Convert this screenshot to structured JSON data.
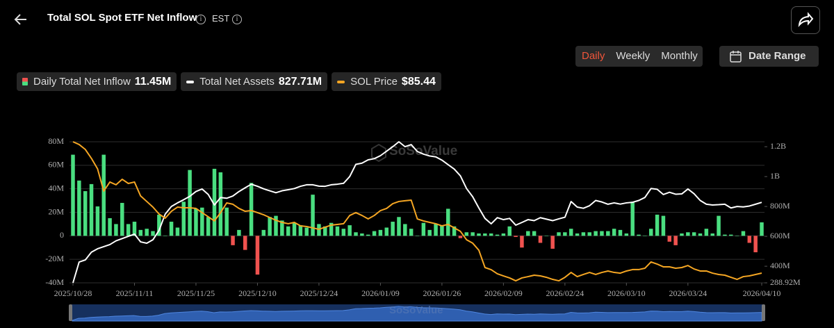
{
  "header": {
    "title": "Total SOL Spot ETF Net Inflow",
    "timezone": "EST"
  },
  "controls": {
    "tabs": [
      "Daily",
      "Weekly",
      "Monthly"
    ],
    "date_range": "Date Range"
  },
  "watermark": "SoSoValue",
  "chart_data": {
    "type": "combo",
    "categories": [
      "2025/10/28",
      null,
      null,
      null,
      null,
      null,
      null,
      null,
      null,
      null,
      "2025/11/11",
      null,
      null,
      null,
      null,
      null,
      null,
      null,
      null,
      null,
      "2025/11/25",
      null,
      null,
      null,
      null,
      null,
      null,
      null,
      null,
      null,
      "2025/12/10",
      null,
      null,
      null,
      null,
      null,
      null,
      null,
      null,
      null,
      "2025/12/24",
      null,
      null,
      null,
      null,
      null,
      null,
      null,
      null,
      null,
      "2026/01/09",
      null,
      null,
      null,
      null,
      null,
      null,
      null,
      null,
      null,
      "2026/01/26",
      null,
      null,
      null,
      null,
      null,
      null,
      null,
      null,
      null,
      "2026/02/09",
      null,
      null,
      null,
      null,
      null,
      null,
      null,
      null,
      null,
      "2026/02/24",
      null,
      null,
      null,
      null,
      null,
      null,
      null,
      null,
      null,
      "2026/03/10",
      null,
      null,
      null,
      null,
      null,
      null,
      null,
      null,
      null,
      "2026/03/24",
      null,
      null,
      null,
      null,
      null,
      null,
      null,
      null,
      null,
      null,
      null,
      "2026/04/10"
    ],
    "series": [
      {
        "name": "Daily Total Net Inflow",
        "current": "11.45M",
        "type": "bar",
        "color": "#4ade80",
        "negative_color": "#f0524f",
        "values": [
          69,
          47,
          38,
          44,
          25,
          69,
          15,
          10,
          28,
          10,
          12,
          5,
          6,
          4,
          18,
          0,
          12,
          7,
          29,
          56,
          23,
          24,
          16,
          57,
          54,
          24,
          -8,
          5,
          -12,
          45,
          -33,
          5,
          16,
          17,
          13,
          8,
          11,
          9,
          7,
          35,
          10,
          8,
          11,
          8,
          6,
          9,
          3,
          2,
          1,
          4,
          5,
          7,
          12,
          16,
          10,
          6,
          0,
          11,
          5,
          10,
          9,
          23,
          8,
          -2,
          3,
          3,
          2,
          2,
          2,
          1,
          2,
          8,
          -1,
          -10,
          4,
          4,
          -6,
          0,
          -11,
          3,
          3,
          6,
          2,
          3,
          3,
          4,
          4,
          4,
          6,
          5,
          2,
          29,
          1,
          0,
          6,
          18,
          17,
          -5,
          -8,
          2,
          3,
          3,
          2,
          6,
          2,
          17,
          1,
          1,
          0,
          4,
          -6,
          -14,
          11.45
        ]
      },
      {
        "name": "Total Net Assets",
        "current": "827.71M",
        "type": "line",
        "color": "#ffffff",
        "axis": "y2",
        "values": [
          289,
          428,
          442,
          494,
          517,
          531,
          545,
          570,
          585,
          600,
          615,
          563,
          554,
          577,
          640,
          749,
          800,
          824,
          845,
          868,
          900,
          917,
          880,
          810,
          860,
          855,
          870,
          900,
          925,
          949,
          935,
          918,
          905,
          892,
          905,
          912,
          920,
          935,
          945,
          945,
          936,
          935,
          945,
          949,
          955,
          1000,
          1082,
          1090,
          1112,
          1120,
          1140,
          1170,
          1200,
          1233,
          1200,
          1214,
          1168,
          1150,
          1138,
          1132,
          1110,
          1080,
          1050,
          1005,
          920,
          865,
          790,
          720,
          684,
          725,
          712,
          720,
          675,
          693,
          712,
          705,
          725,
          715,
          705,
          717,
          728,
          833,
          796,
          788,
          805,
          840,
          830,
          815,
          824,
          816,
          824,
          828,
          840,
          860,
          920,
          915,
          880,
          895,
          882,
          884,
          917,
          885,
          840,
          815,
          810,
          812,
          815,
          790,
          800,
          797,
          803,
          815,
          827.71
        ]
      },
      {
        "name": "SOL Price",
        "current": "$85.44",
        "type": "line",
        "color": "#f5a623",
        "axis": "y3",
        "values": [
          195.4,
          193.1,
          189.0,
          181.5,
          172.7,
          154.1,
          161.7,
          159.4,
          164.0,
          160.5,
          161.7,
          150.0,
          145.4,
          140.7,
          134.9,
          131.4,
          137.2,
          140.7,
          140.1,
          140.1,
          139.6,
          136.1,
          132.6,
          129.1,
          136.1,
          144.2,
          143.1,
          139.6,
          137.2,
          137.8,
          136.1,
          134.3,
          132.0,
          129.7,
          127.9,
          126.8,
          127.9,
          125.0,
          124.4,
          123.3,
          122.1,
          123.9,
          125.6,
          126.2,
          126.8,
          133.7,
          136.1,
          133.7,
          130.8,
          133.7,
          137.8,
          139.6,
          143.6,
          145.4,
          146.0,
          146.5,
          130.8,
          129.1,
          127.9,
          126.8,
          125.0,
          126.2,
          123.3,
          120.4,
          113.4,
          110.5,
          104.6,
          90.1,
          88.3,
          84.9,
          83.1,
          81.4,
          79.0,
          81.4,
          82.5,
          83.7,
          83.1,
          81.9,
          80.2,
          79.0,
          81.9,
          86.0,
          82.5,
          84.3,
          86.0,
          84.3,
          86.0,
          87.2,
          86.0,
          85.4,
          87.2,
          88.4,
          88.4,
          89.5,
          94.8,
          93.0,
          90.7,
          90.7,
          89.5,
          90.1,
          91.8,
          88.9,
          87.2,
          87.2,
          85.4,
          84.3,
          83.7,
          81.9,
          80.2,
          82.5,
          83.1,
          84.3,
          85.44
        ]
      }
    ],
    "ylim": [
      -40,
      80
    ],
    "yticks": [
      {
        "value": -40,
        "label": "-40M"
      },
      {
        "value": -20,
        "label": "-20M"
      },
      0,
      {
        "value": 20,
        "label": "20M"
      },
      {
        "value": 40,
        "label": "40M"
      },
      {
        "value": 60,
        "label": "60M"
      },
      {
        "value": 80,
        "label": "80M"
      }
    ],
    "y2lim": [
      288.92,
      1233
    ],
    "y2ticks": [
      {
        "value": 288.92,
        "label": "288.92M"
      },
      {
        "value": 400,
        "label": "400M"
      },
      {
        "value": 600,
        "label": "600M"
      },
      {
        "value": 800,
        "label": "800M"
      },
      {
        "value": 1000,
        "label": "1B"
      },
      {
        "value": 1200,
        "label": "1.2B"
      }
    ],
    "y3lim": [
      77.3,
      195.4
    ],
    "grid": true
  }
}
